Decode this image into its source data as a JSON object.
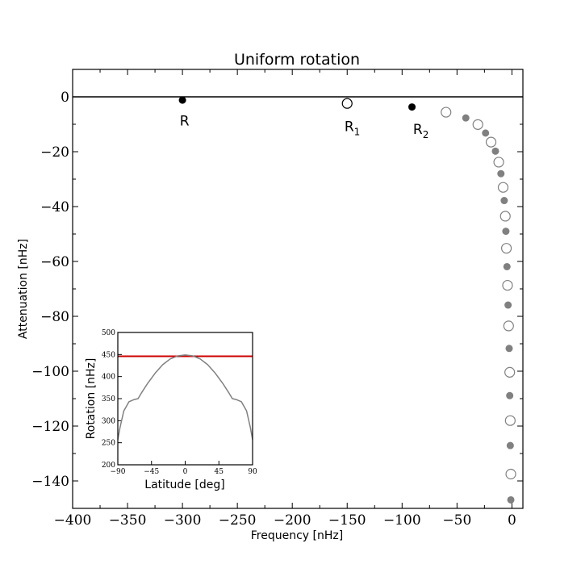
{
  "chart_data": [
    {
      "type": "scatter",
      "title": "Uniform rotation",
      "xlabel": "Frequency [nHz]",
      "ylabel": "Attenuation [nHz]",
      "xlim": [
        -400,
        10
      ],
      "ylim": [
        -150,
        10
      ],
      "x_ticks": [
        -400,
        -350,
        -300,
        -250,
        -200,
        -150,
        -100,
        -50,
        0
      ],
      "x_tick_labels": [
        "−400",
        "−350",
        "−300",
        "−250",
        "−200",
        "−150",
        "−100",
        "−50",
        "0"
      ],
      "y_ticks": [
        0,
        -20,
        -40,
        -60,
        -80,
        -100,
        -120,
        -140
      ],
      "y_tick_labels": [
        "0",
        "−20",
        "−40",
        "−60",
        "−80",
        "−100",
        "−120",
        "−140"
      ],
      "reference_line": {
        "y": 0
      },
      "grid": false,
      "colors": {
        "filled_black": "#000000",
        "filled_gray": "#808080",
        "open_black": "#000000",
        "open_gray": "#808080"
      },
      "annotations": [
        {
          "text": "R",
          "x": -302.5,
          "y": -5.5
        },
        {
          "text": "R",
          "subscript": "1",
          "x": -152.5,
          "y": -7.5
        },
        {
          "text": "R",
          "subscript": "2",
          "x": -90,
          "y": -8.5
        }
      ],
      "series": [
        {
          "marker": "filled",
          "color": "black",
          "points": [
            {
              "x": -300,
              "y": -1.2
            },
            {
              "x": -91,
              "y": -3.7
            }
          ]
        },
        {
          "marker": "open",
          "color": "black",
          "points": [
            {
              "x": -150,
              "y": -2.4
            }
          ]
        },
        {
          "marker": "open",
          "color": "gray",
          "points": [
            {
              "x": -60,
              "y": -5.6
            },
            {
              "x": -31,
              "y": -10.1
            },
            {
              "x": -19,
              "y": -16.5
            },
            {
              "x": -12,
              "y": -23.8
            },
            {
              "x": -8,
              "y": -33.0
            },
            {
              "x": -6,
              "y": -43.5
            },
            {
              "x": -5,
              "y": -55.2
            },
            {
              "x": -4,
              "y": -68.7
            },
            {
              "x": -3,
              "y": -83.5
            },
            {
              "x": -2,
              "y": -100.4
            },
            {
              "x": -1.5,
              "y": -118.0
            },
            {
              "x": -1,
              "y": -137.5
            }
          ]
        },
        {
          "marker": "filled",
          "color": "gray",
          "points": [
            {
              "x": -42,
              "y": -7.7
            },
            {
              "x": -24,
              "y": -13.2
            },
            {
              "x": -15,
              "y": -19.8
            },
            {
              "x": -10,
              "y": -28.0
            },
            {
              "x": -7,
              "y": -37.8
            },
            {
              "x": -5.5,
              "y": -49.0
            },
            {
              "x": -4.5,
              "y": -61.9
            },
            {
              "x": -3.5,
              "y": -75.9
            },
            {
              "x": -2.5,
              "y": -91.7
            },
            {
              "x": -2,
              "y": -108.9
            },
            {
              "x": -1.5,
              "y": -127.1
            },
            {
              "x": -1,
              "y": -146.9
            }
          ]
        }
      ]
    },
    {
      "type": "line",
      "title": "",
      "xlabel": "Latitude [deg]",
      "ylabel": "Rotation [nHz]",
      "xlim": [
        -90,
        90
      ],
      "ylim": [
        200,
        500
      ],
      "x_ticks": [
        -90,
        -45,
        0,
        45,
        90
      ],
      "x_tick_labels": [
        "−90",
        "−45",
        "0",
        "45",
        "90"
      ],
      "y_ticks": [
        200,
        250,
        300,
        350,
        400,
        450,
        500
      ],
      "y_tick_labels": [
        "200",
        "250",
        "300",
        "350",
        "400",
        "450",
        "500"
      ],
      "grid": false,
      "series": [
        {
          "color": "#cc0000",
          "x": [
            -90,
            90
          ],
          "values": [
            446,
            446
          ]
        },
        {
          "color": "#808080",
          "x": [
            -90,
            -87,
            -82,
            -75,
            -68,
            -63,
            -58,
            -50,
            -40,
            -30,
            -20,
            -10,
            0,
            10,
            20,
            30,
            40,
            50,
            58,
            63,
            68,
            75,
            82,
            87,
            90
          ],
          "values": [
            257,
            285,
            322,
            343,
            348,
            350,
            364,
            385,
            408,
            427,
            440,
            447,
            449,
            447,
            440,
            427,
            408,
            385,
            364,
            350,
            348,
            343,
            322,
            285,
            257
          ]
        }
      ]
    }
  ]
}
